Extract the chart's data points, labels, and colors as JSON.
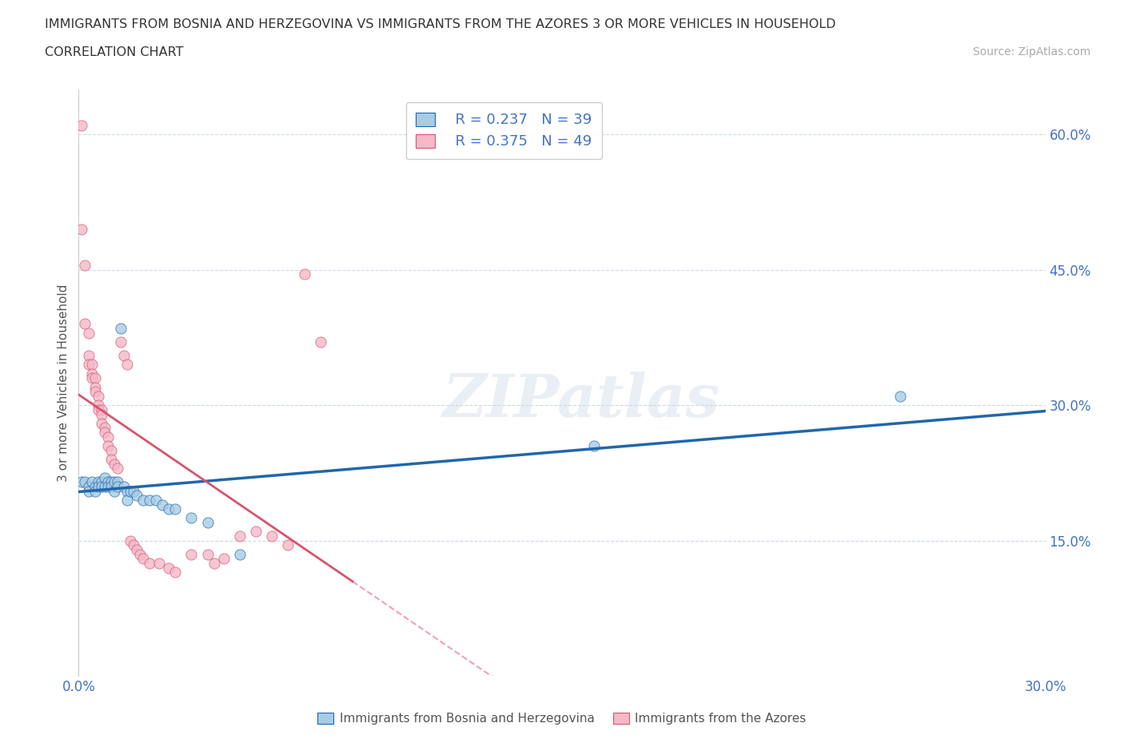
{
  "title_line1": "IMMIGRANTS FROM BOSNIA AND HERZEGOVINA VS IMMIGRANTS FROM THE AZORES 3 OR MORE VEHICLES IN HOUSEHOLD",
  "title_line2": "CORRELATION CHART",
  "source_text": "Source: ZipAtlas.com",
  "ylabel": "3 or more Vehicles in Household",
  "xmin": 0.0,
  "xmax": 0.3,
  "ymin": 0.0,
  "ymax": 0.65,
  "legend_r1": "R = 0.237",
  "legend_n1": "N = 39",
  "legend_r2": "R = 0.375",
  "legend_n2": "N = 49",
  "watermark": "ZIPatlas",
  "blue_color": "#a8cce4",
  "pink_color": "#f4b8c8",
  "blue_line_color": "#2166ac",
  "pink_line_color": "#d6546e",
  "pink_dashed_color": "#f0a0b8",
  "blue_scatter": [
    [
      0.001,
      0.215
    ],
    [
      0.002,
      0.215
    ],
    [
      0.003,
      0.21
    ],
    [
      0.003,
      0.205
    ],
    [
      0.004,
      0.215
    ],
    [
      0.005,
      0.21
    ],
    [
      0.005,
      0.205
    ],
    [
      0.006,
      0.215
    ],
    [
      0.006,
      0.21
    ],
    [
      0.007,
      0.215
    ],
    [
      0.007,
      0.21
    ],
    [
      0.008,
      0.22
    ],
    [
      0.008,
      0.21
    ],
    [
      0.009,
      0.215
    ],
    [
      0.009,
      0.21
    ],
    [
      0.01,
      0.215
    ],
    [
      0.01,
      0.21
    ],
    [
      0.011,
      0.215
    ],
    [
      0.011,
      0.205
    ],
    [
      0.012,
      0.215
    ],
    [
      0.012,
      0.21
    ],
    [
      0.013,
      0.385
    ],
    [
      0.014,
      0.21
    ],
    [
      0.015,
      0.205
    ],
    [
      0.015,
      0.195
    ],
    [
      0.016,
      0.205
    ],
    [
      0.017,
      0.205
    ],
    [
      0.018,
      0.2
    ],
    [
      0.02,
      0.195
    ],
    [
      0.022,
      0.195
    ],
    [
      0.024,
      0.195
    ],
    [
      0.026,
      0.19
    ],
    [
      0.028,
      0.185
    ],
    [
      0.03,
      0.185
    ],
    [
      0.035,
      0.175
    ],
    [
      0.04,
      0.17
    ],
    [
      0.05,
      0.135
    ],
    [
      0.16,
      0.255
    ],
    [
      0.255,
      0.31
    ]
  ],
  "pink_scatter": [
    [
      0.001,
      0.61
    ],
    [
      0.001,
      0.495
    ],
    [
      0.002,
      0.455
    ],
    [
      0.002,
      0.39
    ],
    [
      0.003,
      0.38
    ],
    [
      0.003,
      0.355
    ],
    [
      0.003,
      0.345
    ],
    [
      0.004,
      0.345
    ],
    [
      0.004,
      0.335
    ],
    [
      0.004,
      0.33
    ],
    [
      0.005,
      0.33
    ],
    [
      0.005,
      0.32
    ],
    [
      0.005,
      0.315
    ],
    [
      0.006,
      0.31
    ],
    [
      0.006,
      0.3
    ],
    [
      0.006,
      0.295
    ],
    [
      0.007,
      0.295
    ],
    [
      0.007,
      0.29
    ],
    [
      0.007,
      0.28
    ],
    [
      0.008,
      0.275
    ],
    [
      0.008,
      0.27
    ],
    [
      0.009,
      0.265
    ],
    [
      0.009,
      0.255
    ],
    [
      0.01,
      0.25
    ],
    [
      0.01,
      0.24
    ],
    [
      0.011,
      0.235
    ],
    [
      0.012,
      0.23
    ],
    [
      0.013,
      0.37
    ],
    [
      0.014,
      0.355
    ],
    [
      0.015,
      0.345
    ],
    [
      0.016,
      0.15
    ],
    [
      0.017,
      0.145
    ],
    [
      0.018,
      0.14
    ],
    [
      0.019,
      0.135
    ],
    [
      0.02,
      0.13
    ],
    [
      0.022,
      0.125
    ],
    [
      0.025,
      0.125
    ],
    [
      0.028,
      0.12
    ],
    [
      0.03,
      0.115
    ],
    [
      0.035,
      0.135
    ],
    [
      0.04,
      0.135
    ],
    [
      0.042,
      0.125
    ],
    [
      0.045,
      0.13
    ],
    [
      0.05,
      0.155
    ],
    [
      0.055,
      0.16
    ],
    [
      0.06,
      0.155
    ],
    [
      0.065,
      0.145
    ],
    [
      0.07,
      0.445
    ],
    [
      0.075,
      0.37
    ]
  ]
}
